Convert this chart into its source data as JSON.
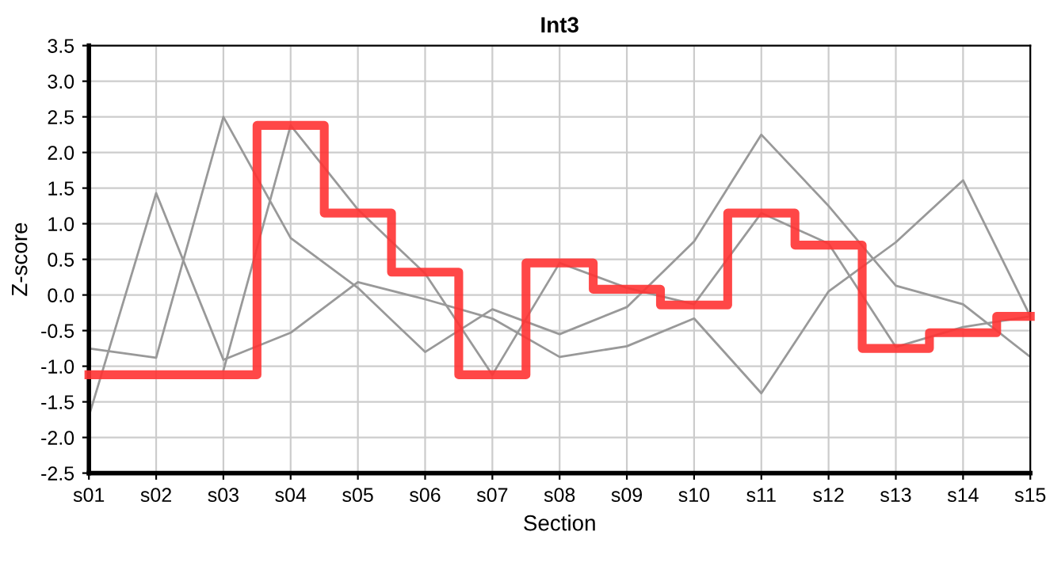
{
  "chart_data": {
    "type": "line",
    "title": "Int3",
    "xlabel": "Section",
    "ylabel": "Z-score",
    "categories": [
      "s01",
      "s02",
      "s03",
      "s04",
      "s05",
      "s06",
      "s07",
      "s08",
      "s09",
      "s10",
      "s11",
      "s12",
      "s13",
      "s14",
      "s15"
    ],
    "series": [
      {
        "color": "#999999",
        "values": [
          -1.7,
          1.43,
          -0.91,
          -0.53,
          0.18,
          -0.06,
          -0.33,
          -0.87,
          -0.72,
          -0.33,
          -1.38,
          0.05,
          0.74,
          1.61,
          -0.3
        ]
      },
      {
        "color": "#999999",
        "values": [
          -0.75,
          -0.88,
          2.5,
          0.8,
          0.1,
          -0.8,
          -0.2,
          -0.55,
          -0.17,
          0.75,
          2.25,
          1.25,
          0.13,
          -0.13,
          -0.87
        ]
      },
      {
        "color": "#999999",
        "values": [
          null,
          null,
          -1.06,
          2.38,
          1.2,
          0.3,
          -1.12,
          0.45,
          0.1,
          -0.13,
          1.15,
          0.72,
          -0.73,
          -0.45,
          -0.3
        ]
      },
      {
        "type": "step",
        "color": "#ff3333",
        "values": [
          -1.12,
          -1.12,
          -1.12,
          2.38,
          1.15,
          0.32,
          -1.12,
          0.45,
          0.08,
          -0.14,
          1.15,
          0.7,
          -0.75,
          -0.53,
          -0.3
        ]
      }
    ],
    "ylim": [
      -2.5,
      3.5
    ],
    "yticks": [
      -2.5,
      {
        "value": -2,
        "label": "-2.0"
      },
      -1.5,
      {
        "value": -1,
        "label": "-1.0"
      },
      -0.5,
      {
        "value": 0,
        "label": "0.0"
      },
      0.5,
      {
        "value": 1,
        "label": "1.0"
      },
      1.5,
      {
        "value": 2,
        "label": "2.0"
      },
      2.5,
      {
        "value": 3,
        "label": "3.0"
      },
      3.5
    ],
    "grid": true
  }
}
